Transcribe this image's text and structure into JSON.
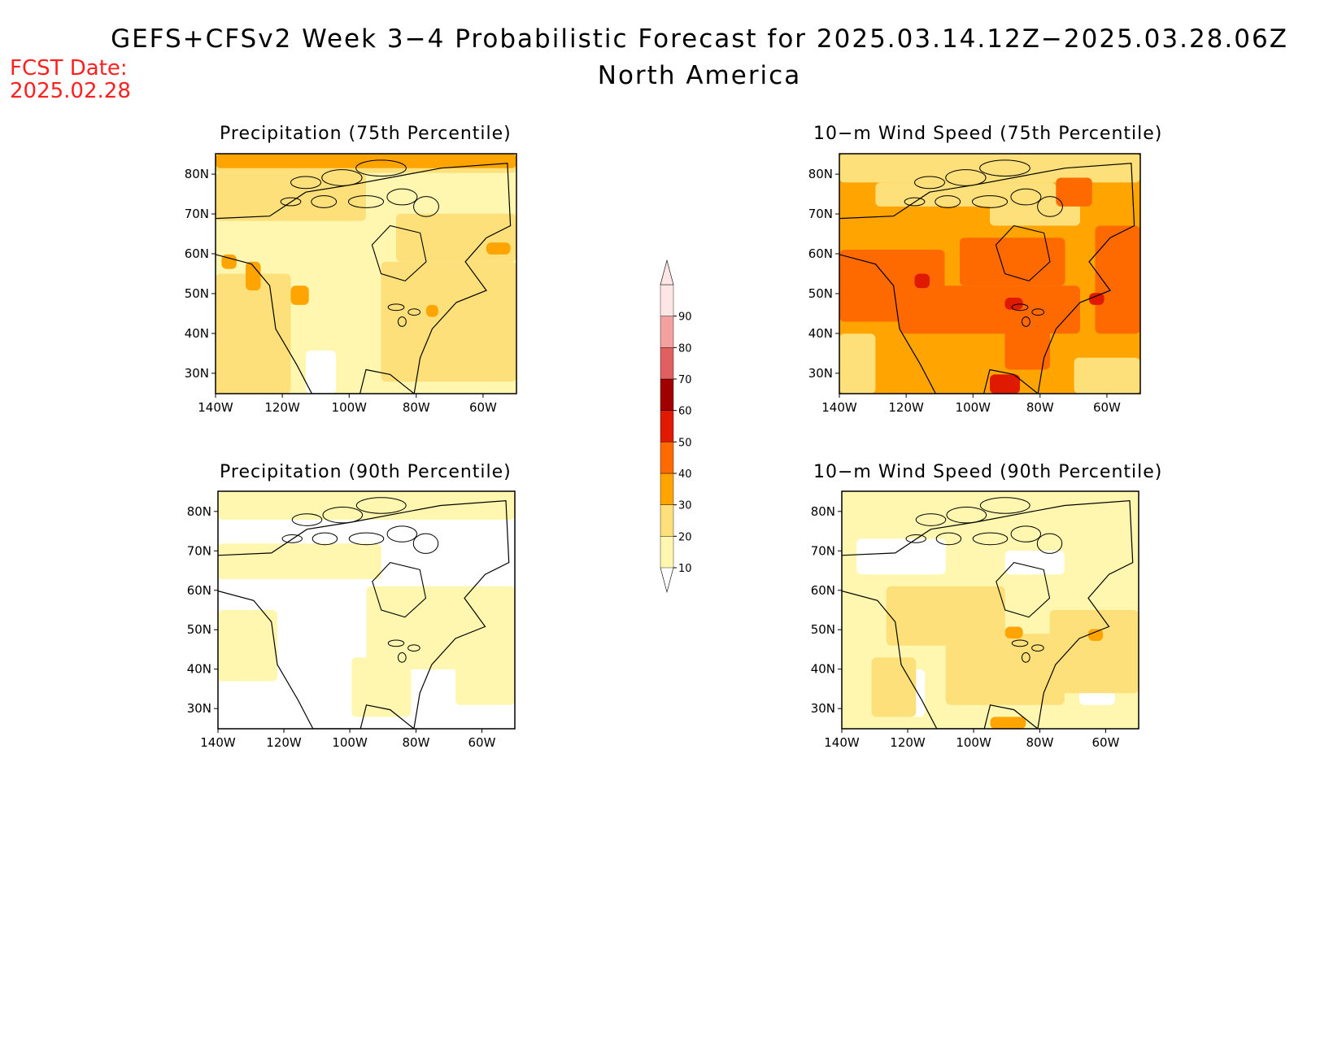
{
  "header": {
    "title": "GEFS+CFSv2 Week 3−4 Probabilistic Forecast for 2025.03.14.12Z−2025.03.28.06Z",
    "subtitle": "North America",
    "fcst_date_label": "FCST Date:",
    "fcst_date_value": "2025.02.28"
  },
  "colors": {
    "levels": [
      "#ffffff",
      "#fff7b0",
      "#fde07a",
      "#ffa400",
      "#ff6a00",
      "#e01a00",
      "#a00000",
      "#e06060",
      "#f3a0a0",
      "#ffe6e6"
    ],
    "frame": "#000000",
    "text_accent": "#ff2020"
  },
  "axes": {
    "lon_ticks": [
      "140W",
      "120W",
      "100W",
      "80W",
      "60W"
    ],
    "lat_ticks": [
      "80N",
      "70N",
      "60N",
      "50N",
      "40N",
      "30N"
    ]
  },
  "panels": [
    {
      "id": "precip-75",
      "title": "Precipitation (75th Percentile)",
      "variable": "precipitation",
      "percentile": 75,
      "dominant_category": "10-20 / 20-30"
    },
    {
      "id": "wind-75",
      "title": "10−m Wind Speed (75th Percentile)",
      "variable": "10-m wind speed",
      "percentile": 75,
      "dominant_category": "30-40 / 40-50"
    },
    {
      "id": "precip-90",
      "title": "Precipitation (90th Percentile)",
      "variable": "precipitation",
      "percentile": 90,
      "dominant_category": "<10 / 10-20"
    },
    {
      "id": "wind-90",
      "title": "10−m Wind Speed (90th Percentile)",
      "variable": "10-m wind speed",
      "percentile": 90,
      "dominant_category": "10-20 / 20-30"
    }
  ],
  "colorbar": {
    "labels": [
      "10",
      "20",
      "30",
      "40",
      "50",
      "60",
      "70",
      "80",
      "90"
    ]
  }
}
